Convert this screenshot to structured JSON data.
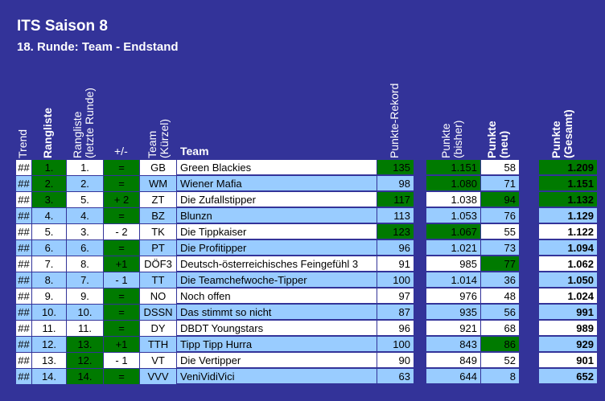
{
  "title": "ITS Saison 8",
  "subtitle": "18. Runde: Team - Endstand",
  "headers": {
    "trend": "Trend",
    "rangliste": "Rangliste",
    "rangliste_letzte_1": "Rangliste",
    "rangliste_letzte_2": "(letzte Runde)",
    "plusminus": "+/-",
    "team_kuerzel_1": "Team",
    "team_kuerzel_2": "(Kürzel)",
    "team": "Team",
    "punkte_rekord": "Punkte-Rekord",
    "punkte_bisher_1": "Punkte",
    "punkte_bisher_2": "(bisher)",
    "punkte_neu_1": "Punkte",
    "punkte_neu_2": "(neu)",
    "punkte_gesamt_1": "Punkte",
    "punkte_gesamt_2": "(Gesamt)"
  },
  "colors": {
    "background": "#333399",
    "highlight_green": "#007a00",
    "row_white": "#ffffff",
    "row_blue": "#99ccff"
  },
  "rows": [
    {
      "trend": "##",
      "rank": "1.",
      "prev": "1.",
      "pm": "=",
      "abbr": "GB",
      "team": "Green Blackies",
      "rekord": "135",
      "bisher": "1.151",
      "neu": "58",
      "gesamt": "1.209",
      "hl": {
        "rank": true,
        "pm": true,
        "rekord": true,
        "bisher": true,
        "gesamt": true
      }
    },
    {
      "trend": "##",
      "rank": "2.",
      "prev": "2.",
      "pm": "=",
      "abbr": "WM",
      "team": "Wiener Mafia",
      "rekord": "98",
      "bisher": "1.080",
      "neu": "71",
      "gesamt": "1.151",
      "hl": {
        "rank": true,
        "pm": true,
        "bisher": true,
        "gesamt": true
      }
    },
    {
      "trend": "##",
      "rank": "3.",
      "prev": "5.",
      "pm": "+ 2",
      "abbr": "ZT",
      "team": "Die Zufallstipper",
      "rekord": "117",
      "bisher": "1.038",
      "neu": "94",
      "gesamt": "1.132",
      "hl": {
        "rank": true,
        "pm": true,
        "rekord": true,
        "neu": true,
        "gesamt": true
      }
    },
    {
      "trend": "##",
      "rank": "4.",
      "prev": "4.",
      "pm": "=",
      "abbr": "BZ",
      "team": "Blunzn",
      "rekord": "113",
      "bisher": "1.053",
      "neu": "76",
      "gesamt": "1.129",
      "hl": {
        "pm": true
      }
    },
    {
      "trend": "##",
      "rank": "5.",
      "prev": "3.",
      "pm": "- 2",
      "abbr": "TK",
      "team": "Die Tippkaiser",
      "rekord": "123",
      "bisher": "1.067",
      "neu": "55",
      "gesamt": "1.122",
      "hl": {
        "rekord": true,
        "bisher": true
      }
    },
    {
      "trend": "##",
      "rank": "6.",
      "prev": "6.",
      "pm": "=",
      "abbr": "PT",
      "team": "Die Profitipper",
      "rekord": "96",
      "bisher": "1.021",
      "neu": "73",
      "gesamt": "1.094",
      "hl": {
        "pm": true
      }
    },
    {
      "trend": "##",
      "rank": "7.",
      "prev": "8.",
      "pm": "+1",
      "abbr": "DÖF3",
      "team": "Deutsch-österreichisches Feingefühl 3",
      "rekord": "91",
      "bisher": "985",
      "neu": "77",
      "gesamt": "1.062",
      "hl": {
        "pm": true,
        "neu": true
      }
    },
    {
      "trend": "##",
      "rank": "8.",
      "prev": "7.",
      "pm": "- 1",
      "abbr": "TT",
      "team": "Die Teamchefwoche-Tipper",
      "rekord": "100",
      "bisher": "1.014",
      "neu": "36",
      "gesamt": "1.050",
      "hl": {}
    },
    {
      "trend": "##",
      "rank": "9.",
      "prev": "9.",
      "pm": "=",
      "abbr": "NO",
      "team": "Noch offen",
      "rekord": "97",
      "bisher": "976",
      "neu": "48",
      "gesamt": "1.024",
      "hl": {
        "pm": true
      }
    },
    {
      "trend": "##",
      "rank": "10.",
      "prev": "10.",
      "pm": "=",
      "abbr": "DSSN",
      "team": "Das stimmt so nicht",
      "rekord": "87",
      "bisher": "935",
      "neu": "56",
      "gesamt": "991",
      "hl": {
        "pm": true
      }
    },
    {
      "trend": "##",
      "rank": "11.",
      "prev": "11.",
      "pm": "=",
      "abbr": "DY",
      "team": "DBDT Youngstars",
      "rekord": "96",
      "bisher": "921",
      "neu": "68",
      "gesamt": "989",
      "hl": {
        "pm": true
      }
    },
    {
      "trend": "##",
      "rank": "12.",
      "prev": "13.",
      "pm": "+1",
      "abbr": "TTH",
      "team": "Tipp Tipp Hurra",
      "rekord": "100",
      "bisher": "843",
      "neu": "86",
      "gesamt": "929",
      "hl": {
        "prev": true,
        "pm": true,
        "neu": true
      }
    },
    {
      "trend": "##",
      "rank": "13.",
      "prev": "12.",
      "pm": "- 1",
      "abbr": "VT",
      "team": "Die Vertipper",
      "rekord": "90",
      "bisher": "849",
      "neu": "52",
      "gesamt": "901",
      "hl": {
        "prev": true
      }
    },
    {
      "trend": "##",
      "rank": "14.",
      "prev": "14.",
      "pm": "=",
      "abbr": "VVV",
      "team": "VeniVidiVici",
      "rekord": "63",
      "bisher": "644",
      "neu": "8",
      "gesamt": "652",
      "hl": {
        "prev": true,
        "pm": true
      }
    }
  ]
}
